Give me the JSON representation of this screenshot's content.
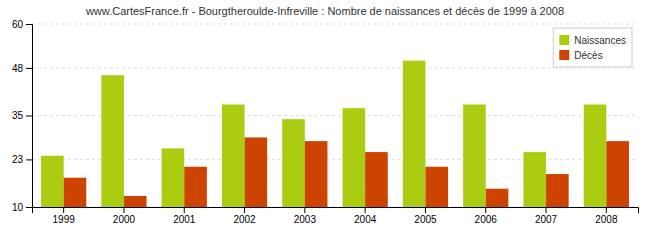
{
  "chart_data": {
    "type": "bar",
    "title": "www.CartesFrance.fr - Bourgtheroulde-Infreville : Nombre de naissances et décès de 1999 à 2008",
    "categories": [
      "1999",
      "2000",
      "2001",
      "2002",
      "2003",
      "2004",
      "2005",
      "2006",
      "2007",
      "2008"
    ],
    "series": [
      {
        "name": "Naissances",
        "color": "#AACC11",
        "values": [
          24,
          46,
          26,
          38,
          34,
          37,
          50,
          38,
          25,
          38
        ]
      },
      {
        "name": "Décès",
        "color": "#CC4400",
        "values": [
          18,
          13,
          21,
          29,
          28,
          25,
          21,
          15,
          19,
          28
        ]
      }
    ],
    "ylim": [
      10,
      60
    ],
    "yticks": [
      10,
      23,
      35,
      48,
      60
    ],
    "grid": true,
    "legend": "top-right"
  }
}
